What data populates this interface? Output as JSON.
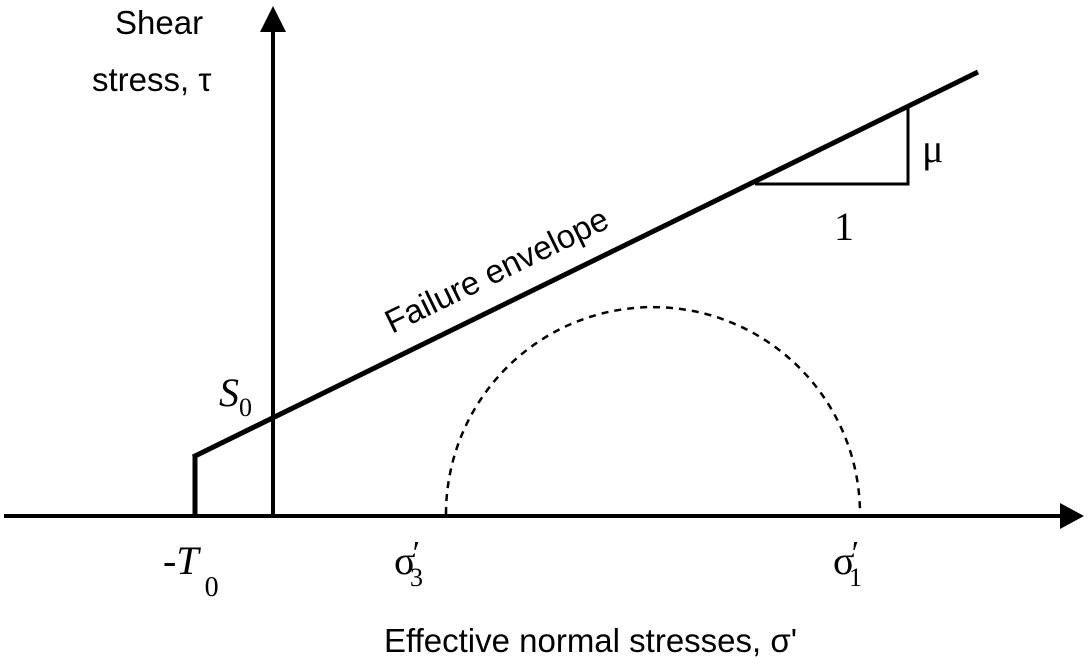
{
  "diagram": {
    "y_axis_label_line1": "Shear",
    "y_axis_label_line2": "stress, τ",
    "x_axis_label": "Effective normal stresses, σ'",
    "envelope_label": "Failure envelope",
    "cohesion_label": {
      "symbol": "S",
      "subscript": "0"
    },
    "tensile_label": {
      "prefix": "-",
      "symbol": "T",
      "subscript": "0"
    },
    "sigma3_label": {
      "symbol": "σ",
      "prime": "′",
      "subscript": "3"
    },
    "sigma1_label": {
      "symbol": "σ",
      "prime": "′",
      "subscript": "1"
    },
    "slope_rise_label": "μ",
    "slope_run_label": "1"
  }
}
